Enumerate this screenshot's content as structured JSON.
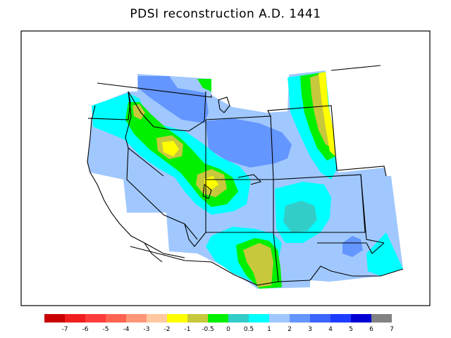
{
  "title": "PDSI reconstruction A.D. 1441",
  "legend": {
    "colors": [
      "#c80000",
      "#f01e1e",
      "#ff3c3c",
      "#ff6450",
      "#ff9678",
      "#ffc8a0",
      "#ffff00",
      "#c8c83c",
      "#00f000",
      "#32cdc8",
      "#00ffff",
      "#a0c8ff",
      "#6496ff",
      "#3c64ff",
      "#1e3cff",
      "#0000d2",
      "#828282"
    ],
    "tick_labels": [
      "-7",
      "-6",
      "-5",
      "-4",
      "-3",
      "-2",
      "-1",
      "-0.5",
      "0",
      "0.5",
      "1",
      "2",
      "3",
      "4",
      "5",
      "6",
      "7"
    ]
  }
}
